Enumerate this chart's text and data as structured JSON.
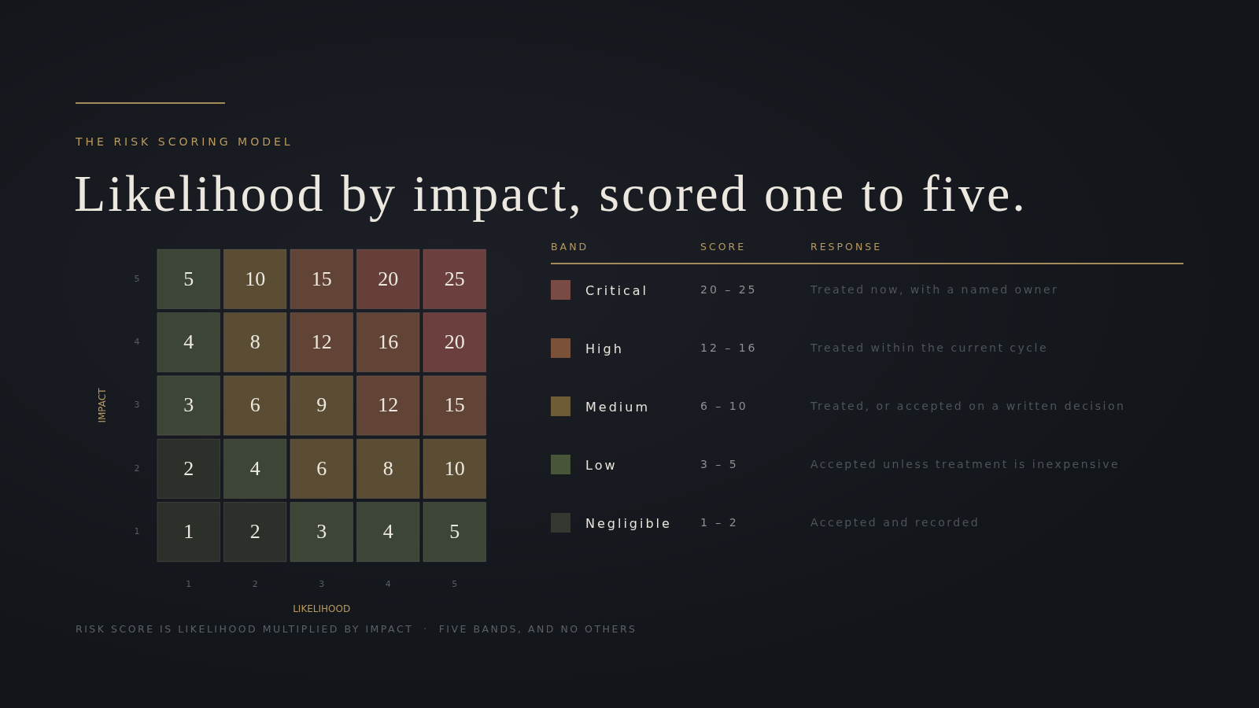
{
  "chart_data": [
    {
      "type": "heatmap",
      "subtitle": "THE RISK SCORING MODEL",
      "title": "Likelihood by impact, scored one to five.",
      "xlabel": "LIKELIHOOD",
      "ylabel": "IMPACT",
      "categories": [
        "1",
        "2",
        "3",
        "4",
        "5"
      ],
      "y_categories": [
        "5",
        "4",
        "3",
        "2",
        "1"
      ],
      "cells": [
        [
          5,
          10,
          15,
          20,
          25
        ],
        [
          4,
          8,
          12,
          16,
          20
        ],
        [
          3,
          6,
          9,
          12,
          15
        ],
        [
          2,
          4,
          6,
          8,
          10
        ],
        [
          1,
          2,
          3,
          4,
          5
        ]
      ],
      "colors": [
        [
          "#3c4536",
          "#5a4d33",
          "#624436",
          "#663f3b",
          "#6a3f3d"
        ],
        [
          "#3c4536",
          "#5a4d33",
          "#624436",
          "#624436",
          "#6a3f3d"
        ],
        [
          "#3c4536",
          "#5a4d33",
          "#5a4d33",
          "#624436",
          "#624436"
        ],
        [
          "#2c302b",
          "#3c4536",
          "#5a4d33",
          "#5a4d33",
          "#5a4d33"
        ],
        [
          "#2c302b",
          "#2c302b",
          "#3c4536",
          "#3c4536",
          "#3c4536"
        ]
      ],
      "data_labels": true,
      "annotations": [
        "RISK SCORE IS LIKELIHOOD MULTIPLIED BY IMPACT  ·  FIVE BANDS, AND NO OTHERS"
      ]
    },
    {
      "type": "other",
      "categories": [
        "BAND",
        "SCORE",
        "RESPONSE"
      ],
      "colors": [
        "#7a4b45",
        "#7b5239",
        "#6e5c36",
        "#485539",
        "#353831"
      ],
      "cell_labels": [
        [
          "Critical",
          "20 – 25",
          "Treated now, with a named owner"
        ],
        [
          "High",
          "12 – 16",
          "Treated within the current cycle"
        ],
        [
          "Medium",
          "6 – 10",
          "Treated, or accepted on a written decision"
        ],
        [
          "Low",
          "3 – 5",
          "Accepted unless treatment is inexpensive"
        ],
        [
          "Negligible",
          "1 – 2",
          "Accepted and recorded"
        ]
      ]
    }
  ]
}
